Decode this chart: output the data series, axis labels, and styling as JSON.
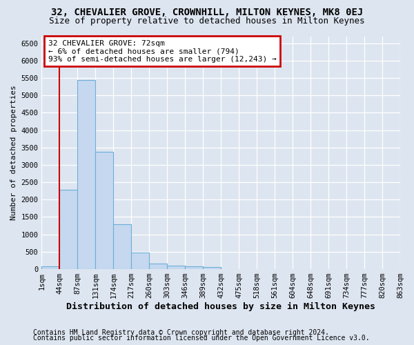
{
  "title": "32, CHEVALIER GROVE, CROWNHILL, MILTON KEYNES, MK8 0EJ",
  "subtitle": "Size of property relative to detached houses in Milton Keynes",
  "xlabel": "Distribution of detached houses by size in Milton Keynes",
  "ylabel": "Number of detached properties",
  "footnote1": "Contains HM Land Registry data © Crown copyright and database right 2024.",
  "footnote2": "Contains public sector information licensed under the Open Government Licence v3.0.",
  "bin_labels": [
    "1sqm",
    "44sqm",
    "87sqm",
    "131sqm",
    "174sqm",
    "217sqm",
    "260sqm",
    "303sqm",
    "346sqm",
    "389sqm",
    "432sqm",
    "475sqm",
    "518sqm",
    "561sqm",
    "604sqm",
    "648sqm",
    "691sqm",
    "734sqm",
    "777sqm",
    "820sqm",
    "863sqm"
  ],
  "bar_values": [
    75,
    2275,
    5430,
    3380,
    1290,
    475,
    160,
    90,
    75,
    55,
    0,
    0,
    0,
    0,
    0,
    0,
    0,
    0,
    0,
    0
  ],
  "bar_color": "#c5d8f0",
  "bar_edge_color": "#6baed6",
  "annotation_line1": "32 CHEVALIER GROVE: 72sqm",
  "annotation_line2": "← 6% of detached houses are smaller (794)",
  "annotation_line3": "93% of semi-detached houses are larger (12,243) →",
  "annotation_box_facecolor": "#ffffff",
  "annotation_box_edge_color": "#cc0000",
  "vline_color": "#cc0000",
  "vline_x": 1.0,
  "ylim_max": 6700,
  "yticks": [
    0,
    500,
    1000,
    1500,
    2000,
    2500,
    3000,
    3500,
    4000,
    4500,
    5000,
    5500,
    6000,
    6500
  ],
  "bg_color": "#dde5f0",
  "grid_color": "#ffffff",
  "title_fontsize": 10,
  "subtitle_fontsize": 9,
  "xlabel_fontsize": 9.5,
  "ylabel_fontsize": 8,
  "tick_fontsize": 7.5,
  "annotation_fontsize": 8,
  "footnote_fontsize": 7
}
